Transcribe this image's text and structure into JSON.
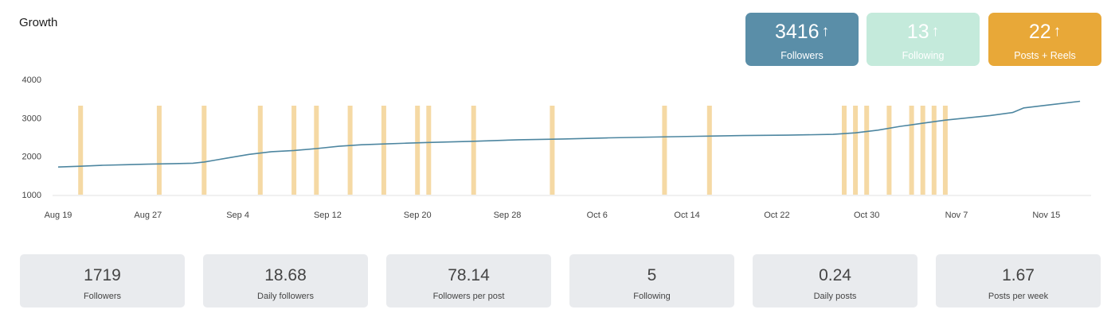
{
  "title": "Growth",
  "kpis": [
    {
      "value": "3416",
      "arrow": "↑",
      "label": "Followers",
      "color": "#5a8ea8"
    },
    {
      "value": "13",
      "arrow": "↑",
      "label": "Following",
      "color": "#c4eadb"
    },
    {
      "value": "22",
      "arrow": "↑",
      "label": "Posts + Reels",
      "color": "#e8a838"
    }
  ],
  "stats": [
    {
      "value": "1719",
      "label": "Followers"
    },
    {
      "value": "18.68",
      "label": "Daily followers"
    },
    {
      "value": "78.14",
      "label": "Followers per post"
    },
    {
      "value": "5",
      "label": "Following"
    },
    {
      "value": "0.24",
      "label": "Daily posts"
    },
    {
      "value": "1.67",
      "label": "Posts per week"
    }
  ],
  "chart_data": {
    "type": "line",
    "title": "",
    "xlabel": "",
    "ylabel": "",
    "ylim": [
      1000,
      4000
    ],
    "y_ticks": [
      1000,
      2000,
      3000,
      4000
    ],
    "x_range": [
      "Aug 19",
      "Nov 18"
    ],
    "x_ticks": [
      "Aug 19",
      "Aug 27",
      "Sep 4",
      "Sep 12",
      "Sep 20",
      "Sep 28",
      "Oct 6",
      "Oct 14",
      "Oct 22",
      "Oct 30",
      "Nov 7",
      "Nov 15"
    ],
    "line_color": "#4d86a0",
    "bar_color": "#f5d9a4",
    "grid": false,
    "series": [
      {
        "values": [
          [
            "Aug 19",
            1720
          ],
          [
            "Aug 21",
            1740
          ],
          [
            "Aug 23",
            1765
          ],
          [
            "Aug 25",
            1780
          ],
          [
            "Aug 27",
            1795
          ],
          [
            "Aug 29",
            1805
          ],
          [
            "Aug 31",
            1820
          ],
          [
            "Sep 1",
            1850
          ],
          [
            "Sep 2",
            1900
          ],
          [
            "Sep 3",
            1950
          ],
          [
            "Sep 5",
            2050
          ],
          [
            "Sep 7",
            2120
          ],
          [
            "Sep 9",
            2150
          ],
          [
            "Sep 11",
            2200
          ],
          [
            "Sep 13",
            2260
          ],
          [
            "Sep 15",
            2300
          ],
          [
            "Sep 17",
            2320
          ],
          [
            "Sep 19",
            2340
          ],
          [
            "Sep 21",
            2360
          ],
          [
            "Sep 25",
            2390
          ],
          [
            "Sep 29",
            2430
          ],
          [
            "Oct 3",
            2450
          ],
          [
            "Oct 7",
            2480
          ],
          [
            "Oct 11",
            2500
          ],
          [
            "Oct 15",
            2520
          ],
          [
            "Oct 19",
            2540
          ],
          [
            "Oct 23",
            2550
          ],
          [
            "Oct 27",
            2570
          ],
          [
            "Oct 29",
            2610
          ],
          [
            "Oct 31",
            2680
          ],
          [
            "Nov 2",
            2780
          ],
          [
            "Nov 4",
            2860
          ],
          [
            "Nov 6",
            2940
          ],
          [
            "Nov 8",
            3000
          ],
          [
            "Nov 10",
            3060
          ],
          [
            "Nov 12",
            3140
          ],
          [
            "Nov 13",
            3260
          ],
          [
            "Nov 15",
            3330
          ],
          [
            "Nov 18",
            3430
          ]
        ]
      }
    ],
    "post_dates": [
      "Aug 21",
      "Aug 28",
      "Sep 1",
      "Sep 6",
      "Sep 9",
      "Sep 11",
      "Sep 14",
      "Sep 17",
      "Sep 20",
      "Sep 21",
      "Sep 25",
      "Oct 2",
      "Oct 12",
      "Oct 16",
      "Oct 28",
      "Oct 29",
      "Oct 30",
      "Nov 1",
      "Nov 3",
      "Nov 4",
      "Nov 5",
      "Nov 6"
    ]
  }
}
